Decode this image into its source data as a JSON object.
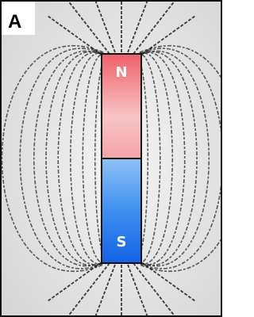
{
  "panel_label": "A",
  "magnet": {
    "north_label": "N",
    "south_label": "S"
  }
}
